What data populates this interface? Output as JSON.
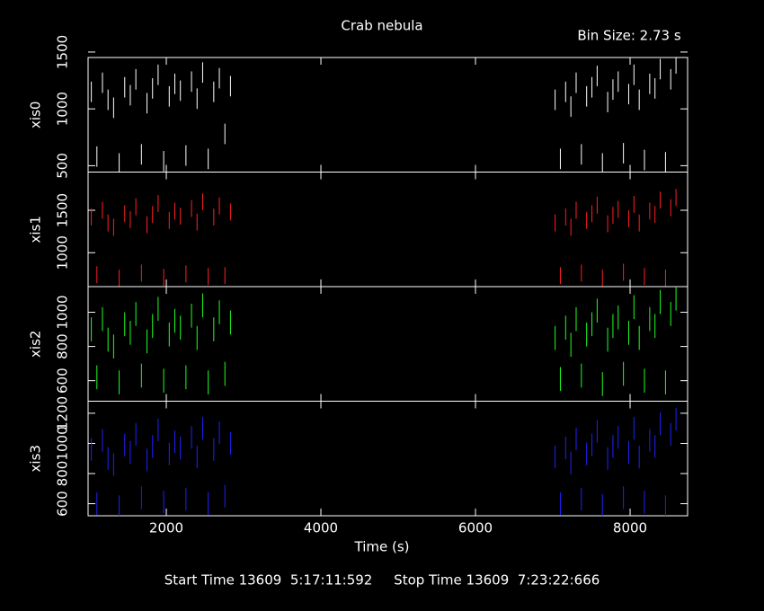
{
  "chart_data": {
    "type": "errorbar",
    "title": "Crab nebula",
    "annotation": "Bin Size: 2.73 s",
    "footer": "Start Time 13609  5:17:11:592     Stop Time 13609  7:23:22:666",
    "xlabel": "Time (s)",
    "xlim": [
      988,
      8744
    ],
    "xticks": [
      2000,
      4000,
      6000,
      8000
    ],
    "x": [
      1030,
      1102,
      1174,
      1246,
      1318,
      1390,
      1462,
      1534,
      1606,
      1678,
      1750,
      1822,
      1894,
      1966,
      2038,
      2110,
      2182,
      2254,
      2326,
      2398,
      2470,
      2542,
      2614,
      2686,
      2758,
      2830,
      7030,
      7098,
      7166,
      7234,
      7302,
      7370,
      7438,
      7506,
      7574,
      7642,
      7710,
      7778,
      7846,
      7914,
      7982,
      8050,
      8118,
      8186,
      8254,
      8322,
      8390,
      8458,
      8526,
      8594
    ],
    "series": [
      {
        "name": "xis0",
        "color": "#ffffff",
        "error": 90,
        "ylim": [
          444,
          1452
        ],
        "yticks": [
          500,
          1000,
          1500
        ],
        "values": [
          1150,
          580,
          1230,
          1080,
          1010,
          520,
          1190,
          1120,
          1260,
          600,
          1050,
          1180,
          1300,
          540,
          1110,
          1220,
          1160,
          590,
          1240,
          1090,
          1320,
          560,
          1150,
          1270,
          780,
          1200,
          1080,
          560,
          1150,
          1020,
          1230,
          600,
          1110,
          1190,
          1290,
          520,
          1060,
          1170,
          1240,
          610,
          1130,
          1300,
          1080,
          550,
          1220,
          1180,
          1350,
          530,
          1260,
          1400
        ]
      },
      {
        "name": "xis1",
        "color": "#ff2020",
        "error": 100,
        "ylim": [
          600,
          1950
        ],
        "yticks": [
          1000,
          1500
        ],
        "values": [
          1420,
          740,
          1500,
          1350,
          1300,
          700,
          1460,
          1390,
          1540,
          760,
          1330,
          1450,
          1580,
          710,
          1380,
          1490,
          1430,
          750,
          1520,
          1360,
          1600,
          720,
          1420,
          1550,
          730,
          1480,
          1350,
          730,
          1420,
          1300,
          1500,
          760,
          1380,
          1460,
          1560,
          700,
          1340,
          1440,
          1510,
          770,
          1400,
          1570,
          1350,
          720,
          1490,
          1450,
          1620,
          700,
          1530,
          1650
        ]
      },
      {
        "name": "xis2",
        "color": "#20ff20",
        "error": 70,
        "ylim": [
          480,
          1150
        ],
        "yticks": [
          600,
          800,
          1000
        ],
        "values": [
          900,
          620,
          960,
          840,
          800,
          590,
          930,
          880,
          990,
          630,
          830,
          920,
          1020,
          600,
          870,
          950,
          910,
          620,
          980,
          850,
          1040,
          590,
          900,
          1000,
          640,
          940,
          850,
          610,
          910,
          810,
          960,
          630,
          870,
          930,
          1010,
          580,
          840,
          920,
          970,
          640,
          880,
          1030,
          850,
          600,
          960,
          920,
          1060,
          590,
          990,
          1080
        ]
      },
      {
        "name": "xis3",
        "color": "#2020ff",
        "error": 75,
        "ylim": [
          520,
          1280
        ],
        "yticks": [
          600,
          800,
          1000,
          1200
        ],
        "values": [
          960,
          600,
          1020,
          900,
          860,
          580,
          990,
          940,
          1060,
          640,
          890,
          980,
          1090,
          610,
          930,
          1010,
          970,
          630,
          1040,
          910,
          1100,
          600,
          960,
          1070,
          650,
          1000,
          910,
          600,
          970,
          870,
          1030,
          630,
          930,
          990,
          1080,
          590,
          900,
          980,
          1040,
          640,
          940,
          1100,
          910,
          610,
          1020,
          980,
          1130,
          580,
          1060,
          1160
        ]
      }
    ]
  }
}
